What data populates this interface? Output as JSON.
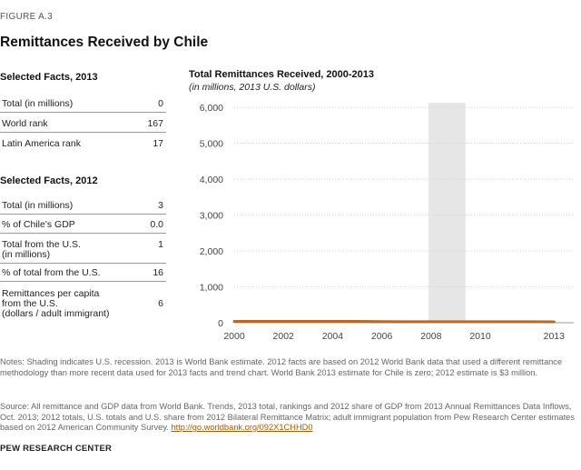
{
  "figure_label": "FIGURE A.3",
  "title": "Remittances Received by Chile",
  "facts_2013": {
    "heading": "Selected Facts, 2013",
    "rows": [
      {
        "label": "Total (in millions)",
        "value": "0"
      },
      {
        "label": "World rank",
        "value": "167"
      },
      {
        "label": "Latin America rank",
        "value": "17"
      }
    ]
  },
  "facts_2012": {
    "heading": "Selected Facts, 2012",
    "rows": [
      {
        "label": "Total (in millions)",
        "value": "3"
      },
      {
        "label": "% of Chile's GDP",
        "value": "0.0"
      },
      {
        "label": "Total from the U.S.\n(in millions)",
        "value": "1"
      },
      {
        "label": "% of total from the U.S.",
        "value": "16"
      },
      {
        "label": "Remittances per capita\nfrom the U.S.\n(dollars / adult immigrant)",
        "value": "6"
      }
    ]
  },
  "chart_data": {
    "type": "line",
    "title": "Total Remittances Received,  2000-2013",
    "subtitle": "(in millions, 2013 U.S. dollars)",
    "x": [
      2000,
      2001,
      2002,
      2003,
      2004,
      2005,
      2006,
      2007,
      2008,
      2009,
      2010,
      2011,
      2012,
      2013
    ],
    "values": [
      13,
      13,
      13,
      13,
      13,
      13,
      4,
      3,
      3,
      3,
      3,
      3,
      3,
      0
    ],
    "xticks": [
      2000,
      2002,
      2004,
      2006,
      2008,
      2010,
      2013
    ],
    "yticks": [
      0,
      1000,
      2000,
      3000,
      4000,
      5000,
      6000
    ],
    "ytick_labels": [
      "0",
      "1,000",
      "2,000",
      "3,000",
      "4,000",
      "5,000",
      "6,000"
    ],
    "xlim": [
      2000,
      2013
    ],
    "ylim": [
      0,
      6000
    ],
    "recession": {
      "start": 2007.9,
      "end": 2009.4
    },
    "line_color": "#b36a2a",
    "recession_color": "#e6e6e6",
    "grid_color": "#d0d0d0"
  },
  "notes": "Notes: Shading indicates U.S. recession. 2013 is World Bank estimate. 2012 facts are based on 2012 World Bank data that used a different remittance methodology than more recent data used for 2013 facts and trend chart. World Bank 2013 estimate for Chile is zero; 2012 estimate is $3 million.",
  "source": "Source: All remittance and GDP data from World Bank. Trends, 2013 total, rankings and 2012 share of GDP from 2013 Annual Remittances Data Inflows, Oct. 2013; 2012 totals, U.S. totals and U.S. share from 2012 Bilateral Remittance Matrix; adult immigrant population from Pew Research Center estimates based on 2012 American Community Survey.",
  "source_link": "http://go.worldbank.org/092X1CHHD0",
  "organization": "PEW RESEARCH CENTER"
}
